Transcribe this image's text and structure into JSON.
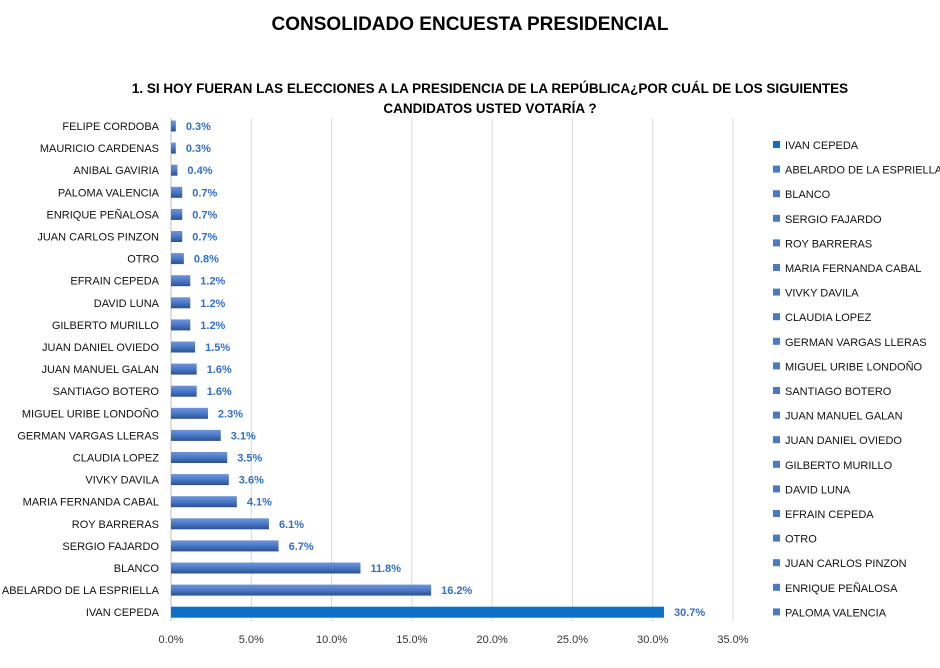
{
  "title": "CONSOLIDADO ENCUESTA PRESIDENCIAL",
  "subtitle_line1": "1. SI HOY FUERAN LAS ELECCIONES A LA PRESIDENCIA DE LA REPÚBLICA¿POR CUÁL DE LOS SIGUIENTES",
  "subtitle_line2": "CANDIDATOS USTED VOTARÍA ?",
  "colors": {
    "primary_bar": "#0f6fc6",
    "bar": "#4a79c8",
    "bar_dark": "#2b4f8f",
    "value_label": "#2f6fd0",
    "grid": "#d9d9d9"
  },
  "chart_data": {
    "type": "bar",
    "orientation": "horizontal",
    "title": "1. SI HOY FUERAN LAS ELECCIONES A LA PRESIDENCIA DE LA REPÚBLICA¿POR CUÁL DE LOS SIGUIENTES CANDIDATOS USTED VOTARÍA ?",
    "categories": [
      "FELIPE CORDOBA",
      "MAURICIO CARDENAS",
      "ANIBAL GAVIRIA",
      "PALOMA VALENCIA",
      "ENRIQUE PEÑALOSA",
      "JUAN CARLOS PINZON",
      "OTRO",
      "EFRAIN CEPEDA",
      "DAVID LUNA",
      "GILBERTO MURILLO",
      "JUAN DANIEL OVIEDO",
      "JUAN MANUEL GALAN",
      "SANTIAGO BOTERO",
      "MIGUEL URIBE LONDOÑO",
      "GERMAN VARGAS LLERAS",
      "CLAUDIA LOPEZ",
      "VIVKY DAVILA",
      "MARIA FERNANDA CABAL",
      "ROY BARRERAS",
      "SERGIO FAJARDO",
      "BLANCO",
      "ABELARDO DE LA ESPRIELLA",
      "IVAN CEPEDA"
    ],
    "values": [
      0.3,
      0.3,
      0.4,
      0.7,
      0.7,
      0.7,
      0.8,
      1.2,
      1.2,
      1.2,
      1.5,
      1.6,
      1.6,
      2.3,
      3.1,
      3.5,
      3.6,
      4.1,
      6.1,
      6.7,
      11.8,
      16.2,
      30.7
    ],
    "value_labels": [
      "0.3%",
      "0.3%",
      "0.4%",
      "0.7%",
      "0.7%",
      "0.7%",
      "0.8%",
      "1.2%",
      "1.2%",
      "1.2%",
      "1.5%",
      "1.6%",
      "1.6%",
      "2.3%",
      "3.1%",
      "3.5%",
      "3.6%",
      "4.1%",
      "6.1%",
      "6.7%",
      "11.8%",
      "16.2%",
      "30.7%"
    ],
    "xlim": [
      0,
      35
    ],
    "xticks": [
      "0.0%",
      "5.0%",
      "10.0%",
      "15.0%",
      "20.0%",
      "25.0%",
      "30.0%",
      "35.0%"
    ],
    "grid": true,
    "legend": {
      "placement": "right",
      "entries": [
        "IVAN CEPEDA",
        "ABELARDO DE LA ESPRIELLA",
        "BLANCO",
        "SERGIO FAJARDO",
        "ROY BARRERAS",
        "MARIA FERNANDA CABAL",
        "VIVKY DAVILA",
        "CLAUDIA LOPEZ",
        "GERMAN VARGAS LLERAS",
        "MIGUEL URIBE LONDOÑO",
        "SANTIAGO BOTERO",
        "JUAN MANUEL GALAN",
        "JUAN DANIEL OVIEDO",
        "GILBERTO MURILLO",
        "DAVID LUNA",
        "EFRAIN CEPEDA",
        "OTRO",
        "JUAN CARLOS PINZON",
        "ENRIQUE PEÑALOSA",
        "PALOMA VALENCIA"
      ]
    }
  }
}
